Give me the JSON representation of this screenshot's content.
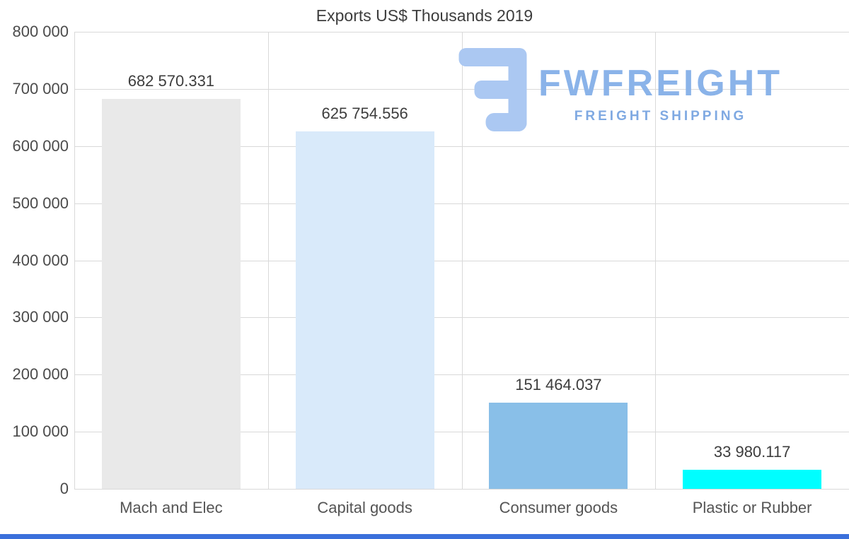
{
  "chart_data": {
    "type": "bar",
    "title": "Exports US$ Thousands 2019",
    "categories": [
      "Mach and Elec",
      "Capital goods",
      "Consumer goods",
      "Plastic or Rubber"
    ],
    "values": [
      682570.331,
      625754.556,
      151464.037,
      33980.117
    ],
    "value_labels": [
      "682 570.331",
      "625 754.556",
      "151 464.037",
      "33 980.117"
    ],
    "bar_colors": [
      "#e9e9e9",
      "#d9eafa",
      "#89bfe8",
      "#00feff"
    ],
    "ylim": [
      0,
      800000
    ],
    "ytick_labels": [
      "0",
      "100 000",
      "200 000",
      "300 000",
      "400 000",
      "500 000",
      "600 000",
      "700 000",
      "800 000"
    ],
    "xlabel": "",
    "ylabel": "",
    "grid": true,
    "legend": false
  },
  "watermark": {
    "brand": "FWFREIGHT",
    "tagline": "FREIGHT SHIPPING",
    "brand_color": "#8ab3e9",
    "tagline_color": "#7fa9e2",
    "icon_color": "#abc8f2"
  },
  "colors": {
    "background": "#ffffff",
    "gridline": "#d9d9d9",
    "title_text": "#3d3d3d",
    "axis_text": "#4b4b4b",
    "bottom_strip": "#3b70db"
  }
}
